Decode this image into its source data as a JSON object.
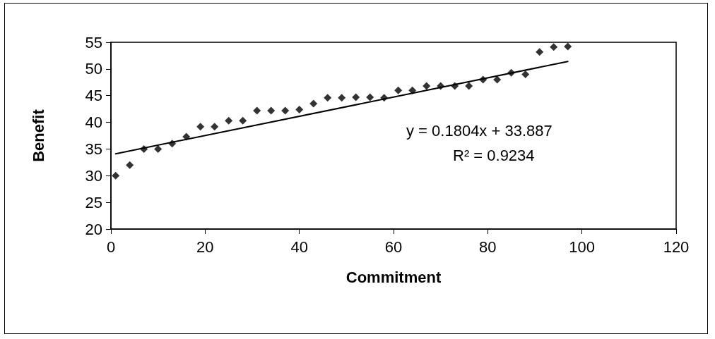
{
  "chart_data": {
    "type": "scatter",
    "xlabel": "Commitment",
    "ylabel": "Benefit",
    "annotations": [
      "y = 0.1804x + 33.887",
      "R² = 0.9234"
    ],
    "xlim": [
      0,
      120
    ],
    "xticks": [
      0,
      20,
      40,
      60,
      80,
      100,
      120
    ],
    "ylim": [
      20,
      55
    ],
    "yticks": [
      20,
      25,
      30,
      35,
      40,
      45,
      50,
      55
    ],
    "marker": "diamond",
    "line_style": "solid",
    "series": [
      {
        "color": "#000000",
        "x": [
          1,
          4,
          7,
          10,
          13,
          16,
          19,
          22,
          25,
          28,
          31,
          34,
          37,
          40,
          43,
          46,
          49,
          52,
          55,
          58,
          61,
          64,
          67,
          70,
          73,
          76,
          79,
          82,
          85,
          88,
          91,
          94,
          97
        ],
        "values": [
          30,
          32,
          35,
          35,
          36,
          37.3,
          39.2,
          39.2,
          40.3,
          40.3,
          42.2,
          42.2,
          42.2,
          42.4,
          43.5,
          44.6,
          44.6,
          44.7,
          44.7,
          44.6,
          46,
          46,
          46.8,
          46.8,
          46.8,
          46.8,
          48,
          48,
          49.3,
          49,
          53.2,
          54.1,
          54.2
        ]
      },
      {
        "type": "line",
        "marker": "none",
        "color": "#000000",
        "x": [
          1,
          97
        ],
        "values": [
          34.1,
          51.4
        ]
      }
    ]
  }
}
